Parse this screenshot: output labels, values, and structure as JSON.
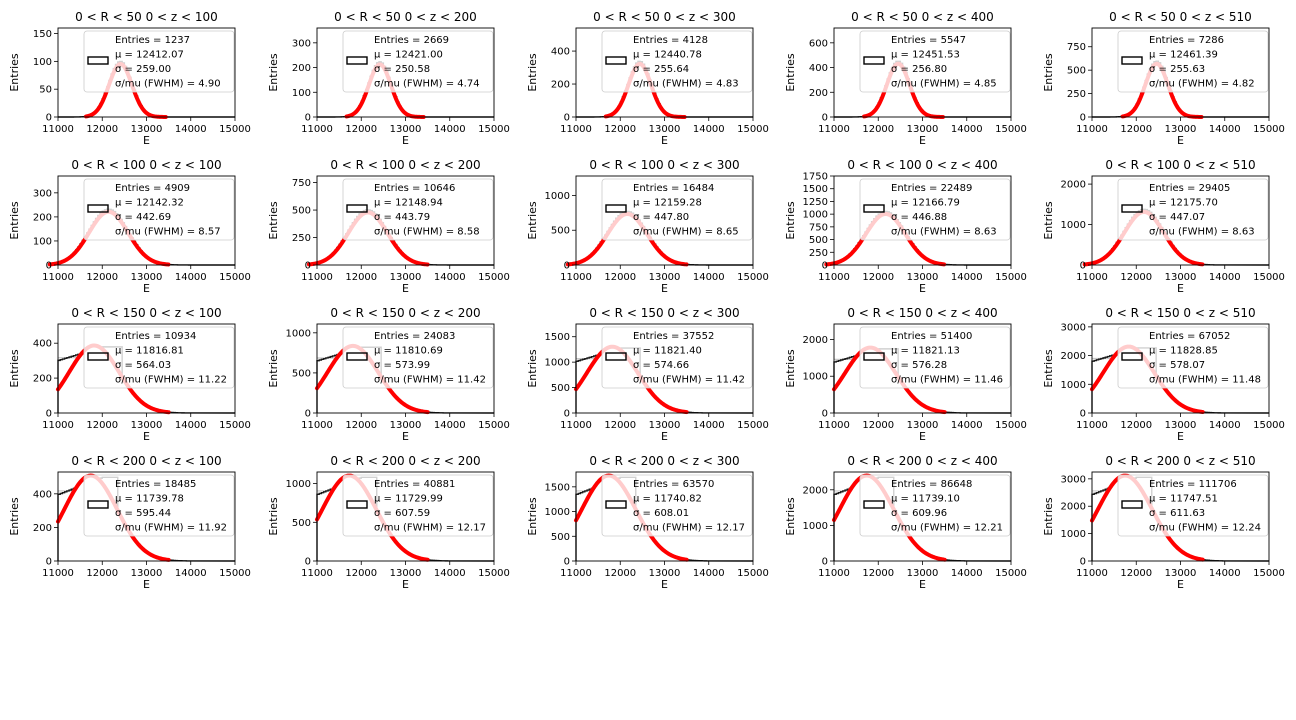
{
  "figure": {
    "xlabel": "E",
    "ylabel": "Entries",
    "xticks": [
      "11000",
      "12000",
      "13000",
      "14000",
      "15000"
    ],
    "legend_labels": {
      "entries": "Entries = ",
      "mu": "μ = ",
      "sigma": "σ = ",
      "ratio": "σ/mu (FWHM)  =    "
    }
  },
  "colors": {
    "histogram": "#1a1a1a",
    "fit": "#ff0000",
    "ghost": "#c8c8c8"
  },
  "chart_data": [
    {
      "type": "bar",
      "title": "0 < R < 50 0 < z < 100",
      "xlim": [
        11000,
        15000
      ],
      "ylim": [
        0,
        160
      ],
      "yticks": [
        0,
        50,
        100,
        150
      ],
      "entries": "1237",
      "mu": "12412.07",
      "sigma": "259.00",
      "ratio": "4.90"
    },
    {
      "type": "bar",
      "title": "0 < R < 50 0 < z < 200",
      "xlim": [
        11000,
        15000
      ],
      "ylim": [
        0,
        360
      ],
      "yticks": [
        0,
        100,
        200,
        300
      ],
      "entries": "2669",
      "mu": "12421.00",
      "sigma": "250.58",
      "ratio": "4.74"
    },
    {
      "type": "bar",
      "title": "0 < R < 50 0 < z < 300",
      "xlim": [
        11000,
        15000
      ],
      "ylim": [
        0,
        540
      ],
      "yticks": [
        0,
        200,
        400
      ],
      "entries": "4128",
      "mu": "12440.78",
      "sigma": "255.64",
      "ratio": "4.83"
    },
    {
      "type": "bar",
      "title": "0 < R < 50 0 < z < 400",
      "xlim": [
        11000,
        15000
      ],
      "ylim": [
        0,
        720
      ],
      "yticks": [
        0,
        200,
        400,
        600
      ],
      "entries": "5547",
      "mu": "12451.53",
      "sigma": "256.80",
      "ratio": "4.85"
    },
    {
      "type": "bar",
      "title": "0 < R < 50 0 < z < 510",
      "xlim": [
        11000,
        15000
      ],
      "ylim": [
        0,
        950
      ],
      "yticks": [
        0,
        250,
        500,
        750
      ],
      "entries": "7286",
      "mu": "12461.39",
      "sigma": "255.63",
      "ratio": "4.82"
    },
    {
      "type": "bar",
      "title": "0 < R < 100 0 < z < 100",
      "xlim": [
        11000,
        15000
      ],
      "ylim": [
        0,
        370
      ],
      "yticks": [
        0,
        100,
        200,
        300
      ],
      "entries": "4909",
      "mu": "12142.32",
      "sigma": "442.69",
      "ratio": "8.57"
    },
    {
      "type": "bar",
      "title": "0 < R < 100 0 < z < 200",
      "xlim": [
        11000,
        15000
      ],
      "ylim": [
        0,
        810
      ],
      "yticks": [
        0,
        250,
        500,
        750
      ],
      "entries": "10646",
      "mu": "12148.94",
      "sigma": "443.79",
      "ratio": "8.58"
    },
    {
      "type": "bar",
      "title": "0 < R < 100 0 < z < 300",
      "xlim": [
        11000,
        15000
      ],
      "ylim": [
        0,
        1280
      ],
      "yticks": [
        0,
        500,
        1000
      ],
      "entries": "16484",
      "mu": "12159.28",
      "sigma": "447.80",
      "ratio": "8.65"
    },
    {
      "type": "bar",
      "title": "0 < R < 100 0 < z < 400",
      "xlim": [
        11000,
        15000
      ],
      "ylim": [
        0,
        1750
      ],
      "yticks": [
        0,
        250,
        500,
        750,
        1000,
        1250,
        1500,
        1750
      ],
      "entries": "22489",
      "mu": "12166.79",
      "sigma": "446.88",
      "ratio": "8.63"
    },
    {
      "type": "bar",
      "title": "0 < R < 100 0 < z < 510",
      "xlim": [
        11000,
        15000
      ],
      "ylim": [
        0,
        2200
      ],
      "yticks": [
        0,
        1000,
        2000
      ],
      "entries": "29405",
      "mu": "12175.70",
      "sigma": "447.07",
      "ratio": "8.63"
    },
    {
      "type": "bar",
      "title": "0 < R < 150 0 < z < 100",
      "xlim": [
        11000,
        15000
      ],
      "ylim": [
        0,
        510
      ],
      "yticks": [
        0,
        200,
        400
      ],
      "entries": "10934",
      "mu": "11816.81",
      "sigma": "564.03",
      "ratio": "11.22"
    },
    {
      "type": "bar",
      "title": "0 < R < 150 0 < z < 200",
      "xlim": [
        11000,
        15000
      ],
      "ylim": [
        0,
        1110
      ],
      "yticks": [
        0,
        500,
        1000
      ],
      "entries": "24083",
      "mu": "11810.69",
      "sigma": "573.99",
      "ratio": "11.42"
    },
    {
      "type": "bar",
      "title": "0 < R < 150 0 < z < 300",
      "xlim": [
        11000,
        15000
      ],
      "ylim": [
        0,
        1750
      ],
      "yticks": [
        0,
        500,
        1000,
        1500
      ],
      "entries": "37552",
      "mu": "11821.40",
      "sigma": "574.66",
      "ratio": "11.42"
    },
    {
      "type": "bar",
      "title": "0 < R < 150 0 < z < 400",
      "xlim": [
        11000,
        15000
      ],
      "ylim": [
        0,
        2420
      ],
      "yticks": [
        0,
        1000,
        2000
      ],
      "entries": "51400",
      "mu": "11821.13",
      "sigma": "576.28",
      "ratio": "11.46"
    },
    {
      "type": "bar",
      "title": "0 < R < 150 0 < z < 510",
      "xlim": [
        11000,
        15000
      ],
      "ylim": [
        0,
        3100
      ],
      "yticks": [
        0,
        1000,
        2000,
        3000
      ],
      "entries": "67052",
      "mu": "11828.85",
      "sigma": "578.07",
      "ratio": "11.48"
    },
    {
      "type": "bar",
      "title": "0 < R < 200 0 < z < 100",
      "xlim": [
        11000,
        15000
      ],
      "ylim": [
        0,
        530
      ],
      "yticks": [
        0,
        200,
        400
      ],
      "entries": "18485",
      "mu": "11739.78",
      "sigma": "595.44",
      "ratio": "11.92"
    },
    {
      "type": "bar",
      "title": "0 < R < 200 0 < z < 200",
      "xlim": [
        11000,
        15000
      ],
      "ylim": [
        0,
        1150
      ],
      "yticks": [
        0,
        500,
        1000
      ],
      "entries": "40881",
      "mu": "11729.99",
      "sigma": "607.59",
      "ratio": "12.17"
    },
    {
      "type": "bar",
      "title": "0 < R < 200 0 < z < 300",
      "xlim": [
        11000,
        15000
      ],
      "ylim": [
        0,
        1800
      ],
      "yticks": [
        0,
        500,
        1000,
        1500
      ],
      "entries": "63570",
      "mu": "11740.82",
      "sigma": "608.01",
      "ratio": "12.17"
    },
    {
      "type": "bar",
      "title": "0 < R < 200 0 < z < 400",
      "xlim": [
        11000,
        15000
      ],
      "ylim": [
        0,
        2500
      ],
      "yticks": [
        0,
        1000,
        2000
      ],
      "entries": "86648",
      "mu": "11739.10",
      "sigma": "609.96",
      "ratio": "12.21"
    },
    {
      "type": "bar",
      "title": "0 < R < 200 0 < z < 510",
      "xlim": [
        11000,
        15000
      ],
      "ylim": [
        0,
        3250
      ],
      "yticks": [
        0,
        1000,
        2000,
        3000
      ],
      "entries": "111706",
      "mu": "11747.51",
      "sigma": "611.63",
      "ratio": "12.24"
    }
  ]
}
